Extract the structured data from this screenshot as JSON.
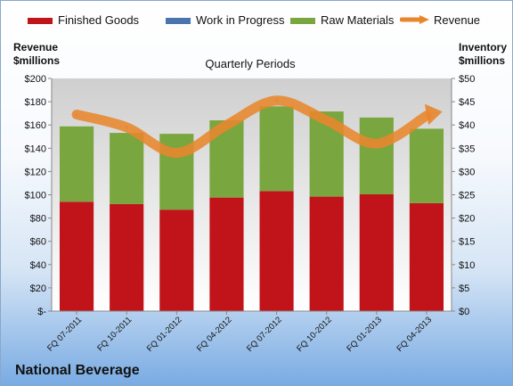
{
  "company_name": "National Beverage",
  "colors": {
    "finished_goods": "#c0141a",
    "work_in_progress": "#4a74ad",
    "raw_materials": "#7aa63f",
    "revenue": "#e8862e",
    "plot_top": "#cfcfcf",
    "plot_bottom": "#ffffff"
  },
  "chart_data": {
    "type": "bar",
    "stacked": true,
    "title": "Quarterly Periods",
    "categories": [
      "FQ 07-2011",
      "FQ 10-2011",
      "FQ 01-2012",
      "FQ 04-2012",
      "FQ 07-2012",
      "FQ 10-2012",
      "FQ 01-2013",
      "FQ 04-2013"
    ],
    "left_axis": {
      "label": "Revenue\n$millions",
      "ylim": [
        0,
        200
      ],
      "ticks": [
        0,
        20,
        40,
        60,
        80,
        100,
        120,
        140,
        160,
        180,
        200
      ],
      "tick_labels": [
        "$-",
        "$20",
        "$40",
        "$60",
        "$80",
        "$100",
        "$120",
        "$140",
        "$160",
        "$180",
        "$200"
      ]
    },
    "right_axis": {
      "label": "Inventory\n$millions",
      "ylim": [
        0,
        50
      ],
      "ticks": [
        0,
        5,
        10,
        15,
        20,
        25,
        30,
        35,
        40,
        45,
        50
      ],
      "tick_labels": [
        "$0",
        "$5",
        "$10",
        "$15",
        "$20",
        "$25",
        "$30",
        "$35",
        "$40",
        "$45",
        "$50"
      ]
    },
    "series": [
      {
        "name": "Finished Goods",
        "kind": "bar",
        "axis": "right",
        "values": [
          23.5,
          23.0,
          21.8,
          24.4,
          25.8,
          24.6,
          25.1,
          23.2
        ]
      },
      {
        "name": "Work in Progress",
        "kind": "bar",
        "axis": "right",
        "values": [
          0,
          0,
          0,
          0,
          0,
          0,
          0,
          0
        ]
      },
      {
        "name": "Raw Materials",
        "kind": "bar",
        "axis": "right",
        "values": [
          16.2,
          15.3,
          16.3,
          16.6,
          18.2,
          18.3,
          16.5,
          16.0
        ]
      },
      {
        "name": "Revenue",
        "kind": "line",
        "axis": "left",
        "values": [
          169,
          158,
          136,
          160,
          181,
          164,
          144,
          168
        ]
      }
    ],
    "legend_position": "top",
    "grid": false
  }
}
